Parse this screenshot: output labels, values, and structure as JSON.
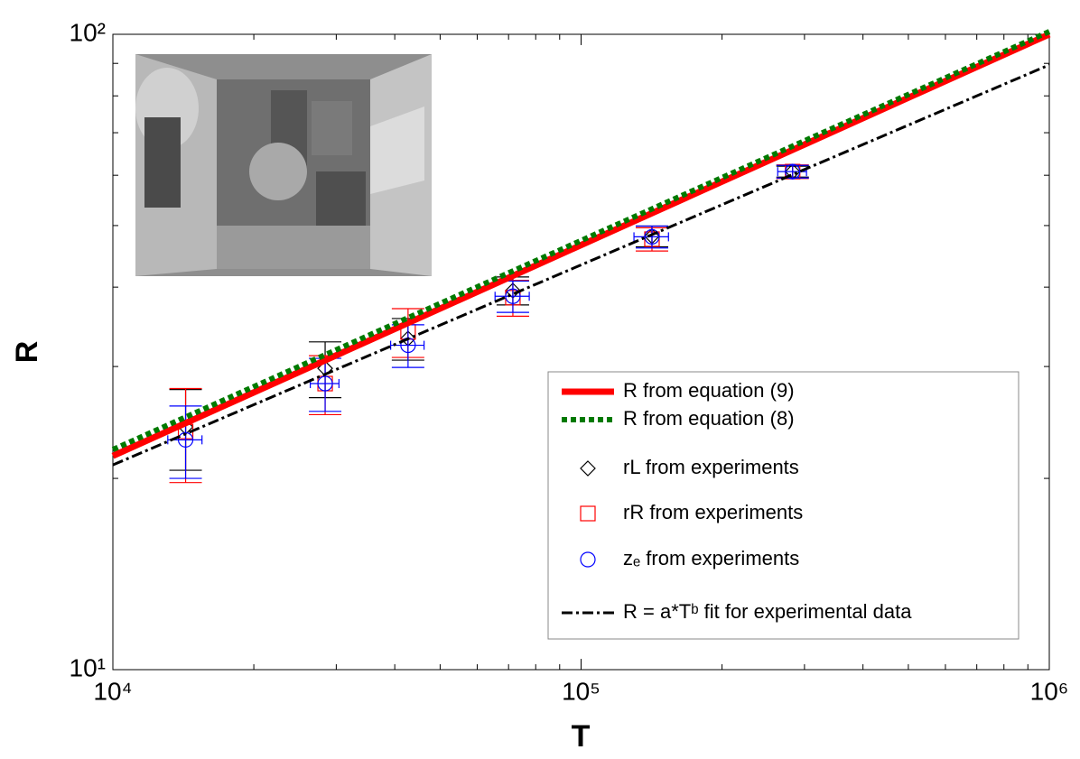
{
  "chart_data": {
    "type": "line",
    "xlabel": "T",
    "ylabel": "R",
    "xscale": "log",
    "yscale": "log",
    "xlim": [
      10000,
      1000000
    ],
    "ylim": [
      10,
      100
    ],
    "xticks": [
      {
        "value": 10000,
        "label": "10⁴"
      },
      {
        "value": 100000,
        "label": "10⁵"
      },
      {
        "value": 1000000,
        "label": "10⁶"
      }
    ],
    "yticks": [
      {
        "value": 10,
        "label": "10¹"
      },
      {
        "value": 100,
        "label": "10²"
      }
    ],
    "xminorticks": [
      20000,
      30000,
      40000,
      50000,
      60000,
      70000,
      80000,
      90000,
      200000,
      300000,
      400000,
      500000,
      600000,
      700000,
      800000,
      900000
    ],
    "yminorticks": [
      20,
      30,
      40,
      50,
      60,
      70,
      80,
      90
    ],
    "legend": "lower right",
    "series": [
      {
        "name": "R from equation (9)",
        "color": "#ff0000",
        "style": "solid",
        "x": [
          10000,
          1000000
        ],
        "values": [
          21.7,
          100
        ]
      },
      {
        "name": "R from equation (8)",
        "color": "#007a00",
        "style": "dotted",
        "x": [
          10000,
          1000000
        ],
        "values": [
          22.2,
          101
        ]
      },
      {
        "name": "rL from experiments",
        "color": "#000000",
        "marker": "diamond",
        "x": [
          14300,
          28400,
          42700,
          71500,
          141700,
          283000
        ],
        "values": [
          24.1,
          29.8,
          33.2,
          39.5,
          48.1,
          60.8
        ],
        "errors": [
          3.5,
          3,
          2.5,
          2,
          1.8,
          1.2
        ]
      },
      {
        "name": "rR from experiments",
        "color": "#ff0000",
        "marker": "square",
        "x": [
          14300,
          28400,
          42700,
          71500,
          141700,
          283000
        ],
        "values": [
          23.7,
          28.2,
          34,
          38.5,
          47.6,
          60.8
        ],
        "errors": [
          4,
          3,
          3,
          2.5,
          2,
          1.5
        ]
      },
      {
        "name": "zₑ from experiments",
        "color": "#0000ff",
        "marker": "circle",
        "x": [
          14300,
          28400,
          42700,
          71500,
          141700,
          283000
        ],
        "values": [
          23,
          28.2,
          32.4,
          38.7,
          48,
          60.8
        ],
        "errors": [
          3,
          2.7,
          2.5,
          2.2,
          1.9,
          1.4
        ],
        "xerr": [
          1200,
          2000,
          3500,
          6000,
          12000,
          20000
        ]
      },
      {
        "name": "R = a*Tᵇ fit for experimental data",
        "color": "#000000",
        "style": "dashdot",
        "x": [
          10000,
          1000000
        ],
        "values": [
          21,
          89.5
        ]
      }
    ]
  }
}
